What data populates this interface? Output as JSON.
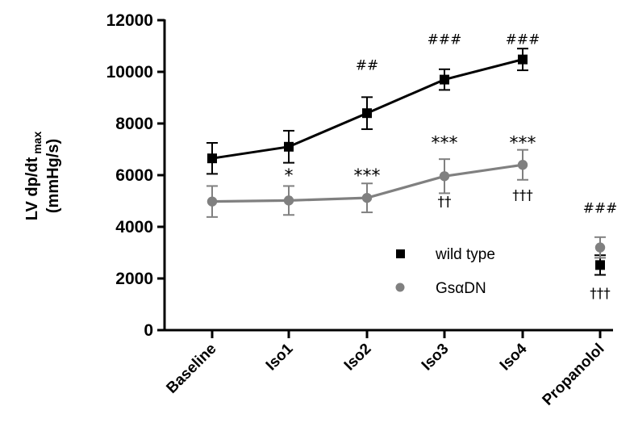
{
  "chart_data": {
    "type": "line",
    "categories": [
      "Baseline",
      "Iso1",
      "Iso2",
      "Iso3",
      "Iso4",
      "Propanolol"
    ],
    "ylabel_line1": "LV dp/dt",
    "ylabel_sub": "max",
    "ylabel_line2": "(mmHg/s)",
    "ylim": [
      0,
      12000
    ],
    "yticks": [
      0,
      2000,
      4000,
      6000,
      8000,
      10000,
      12000
    ],
    "yticks_labels": [
      "0",
      "2000",
      "4000",
      "6000",
      "8000",
      "10000",
      "12000"
    ],
    "grid": false,
    "legend_position": "center-right",
    "series": [
      {
        "name": "wild type",
        "color": "#000000",
        "marker": "square",
        "values": [
          6650,
          7100,
          8400,
          9700,
          10480,
          2520
        ],
        "errors": [
          600,
          620,
          620,
          400,
          420,
          380
        ],
        "connected": [
          true,
          true,
          true,
          true,
          true,
          false
        ]
      },
      {
        "name": "GsαDN",
        "color": "#808080",
        "marker": "circle",
        "values": [
          4980,
          5020,
          5120,
          5960,
          6400,
          3200
        ],
        "errors": [
          600,
          560,
          560,
          660,
          580,
          400
        ],
        "connected": [
          true,
          true,
          true,
          true,
          true,
          false
        ]
      }
    ],
    "annotations": [
      {
        "text": "##",
        "category": 2,
        "y": 10080,
        "type": "hash"
      },
      {
        "text": "###",
        "category": 3,
        "y": 11080,
        "type": "hash"
      },
      {
        "text": "###",
        "category": 4,
        "y": 11080,
        "type": "hash"
      },
      {
        "text": "###",
        "category": 5,
        "y": 4550,
        "type": "hash"
      },
      {
        "text": "*",
        "category": 1,
        "y": 5750,
        "type": "star"
      },
      {
        "text": "***",
        "category": 2,
        "y": 5750,
        "type": "star"
      },
      {
        "text": "***",
        "category": 3,
        "y": 7020,
        "type": "star"
      },
      {
        "text": "***",
        "category": 4,
        "y": 7020,
        "type": "star"
      },
      {
        "text": "††",
        "category": 3,
        "y": 4800,
        "type": "dagger"
      },
      {
        "text": "†††",
        "category": 4,
        "y": 5050,
        "type": "dagger"
      },
      {
        "text": "†††",
        "category": 5,
        "y": 1250,
        "type": "dagger"
      }
    ]
  }
}
